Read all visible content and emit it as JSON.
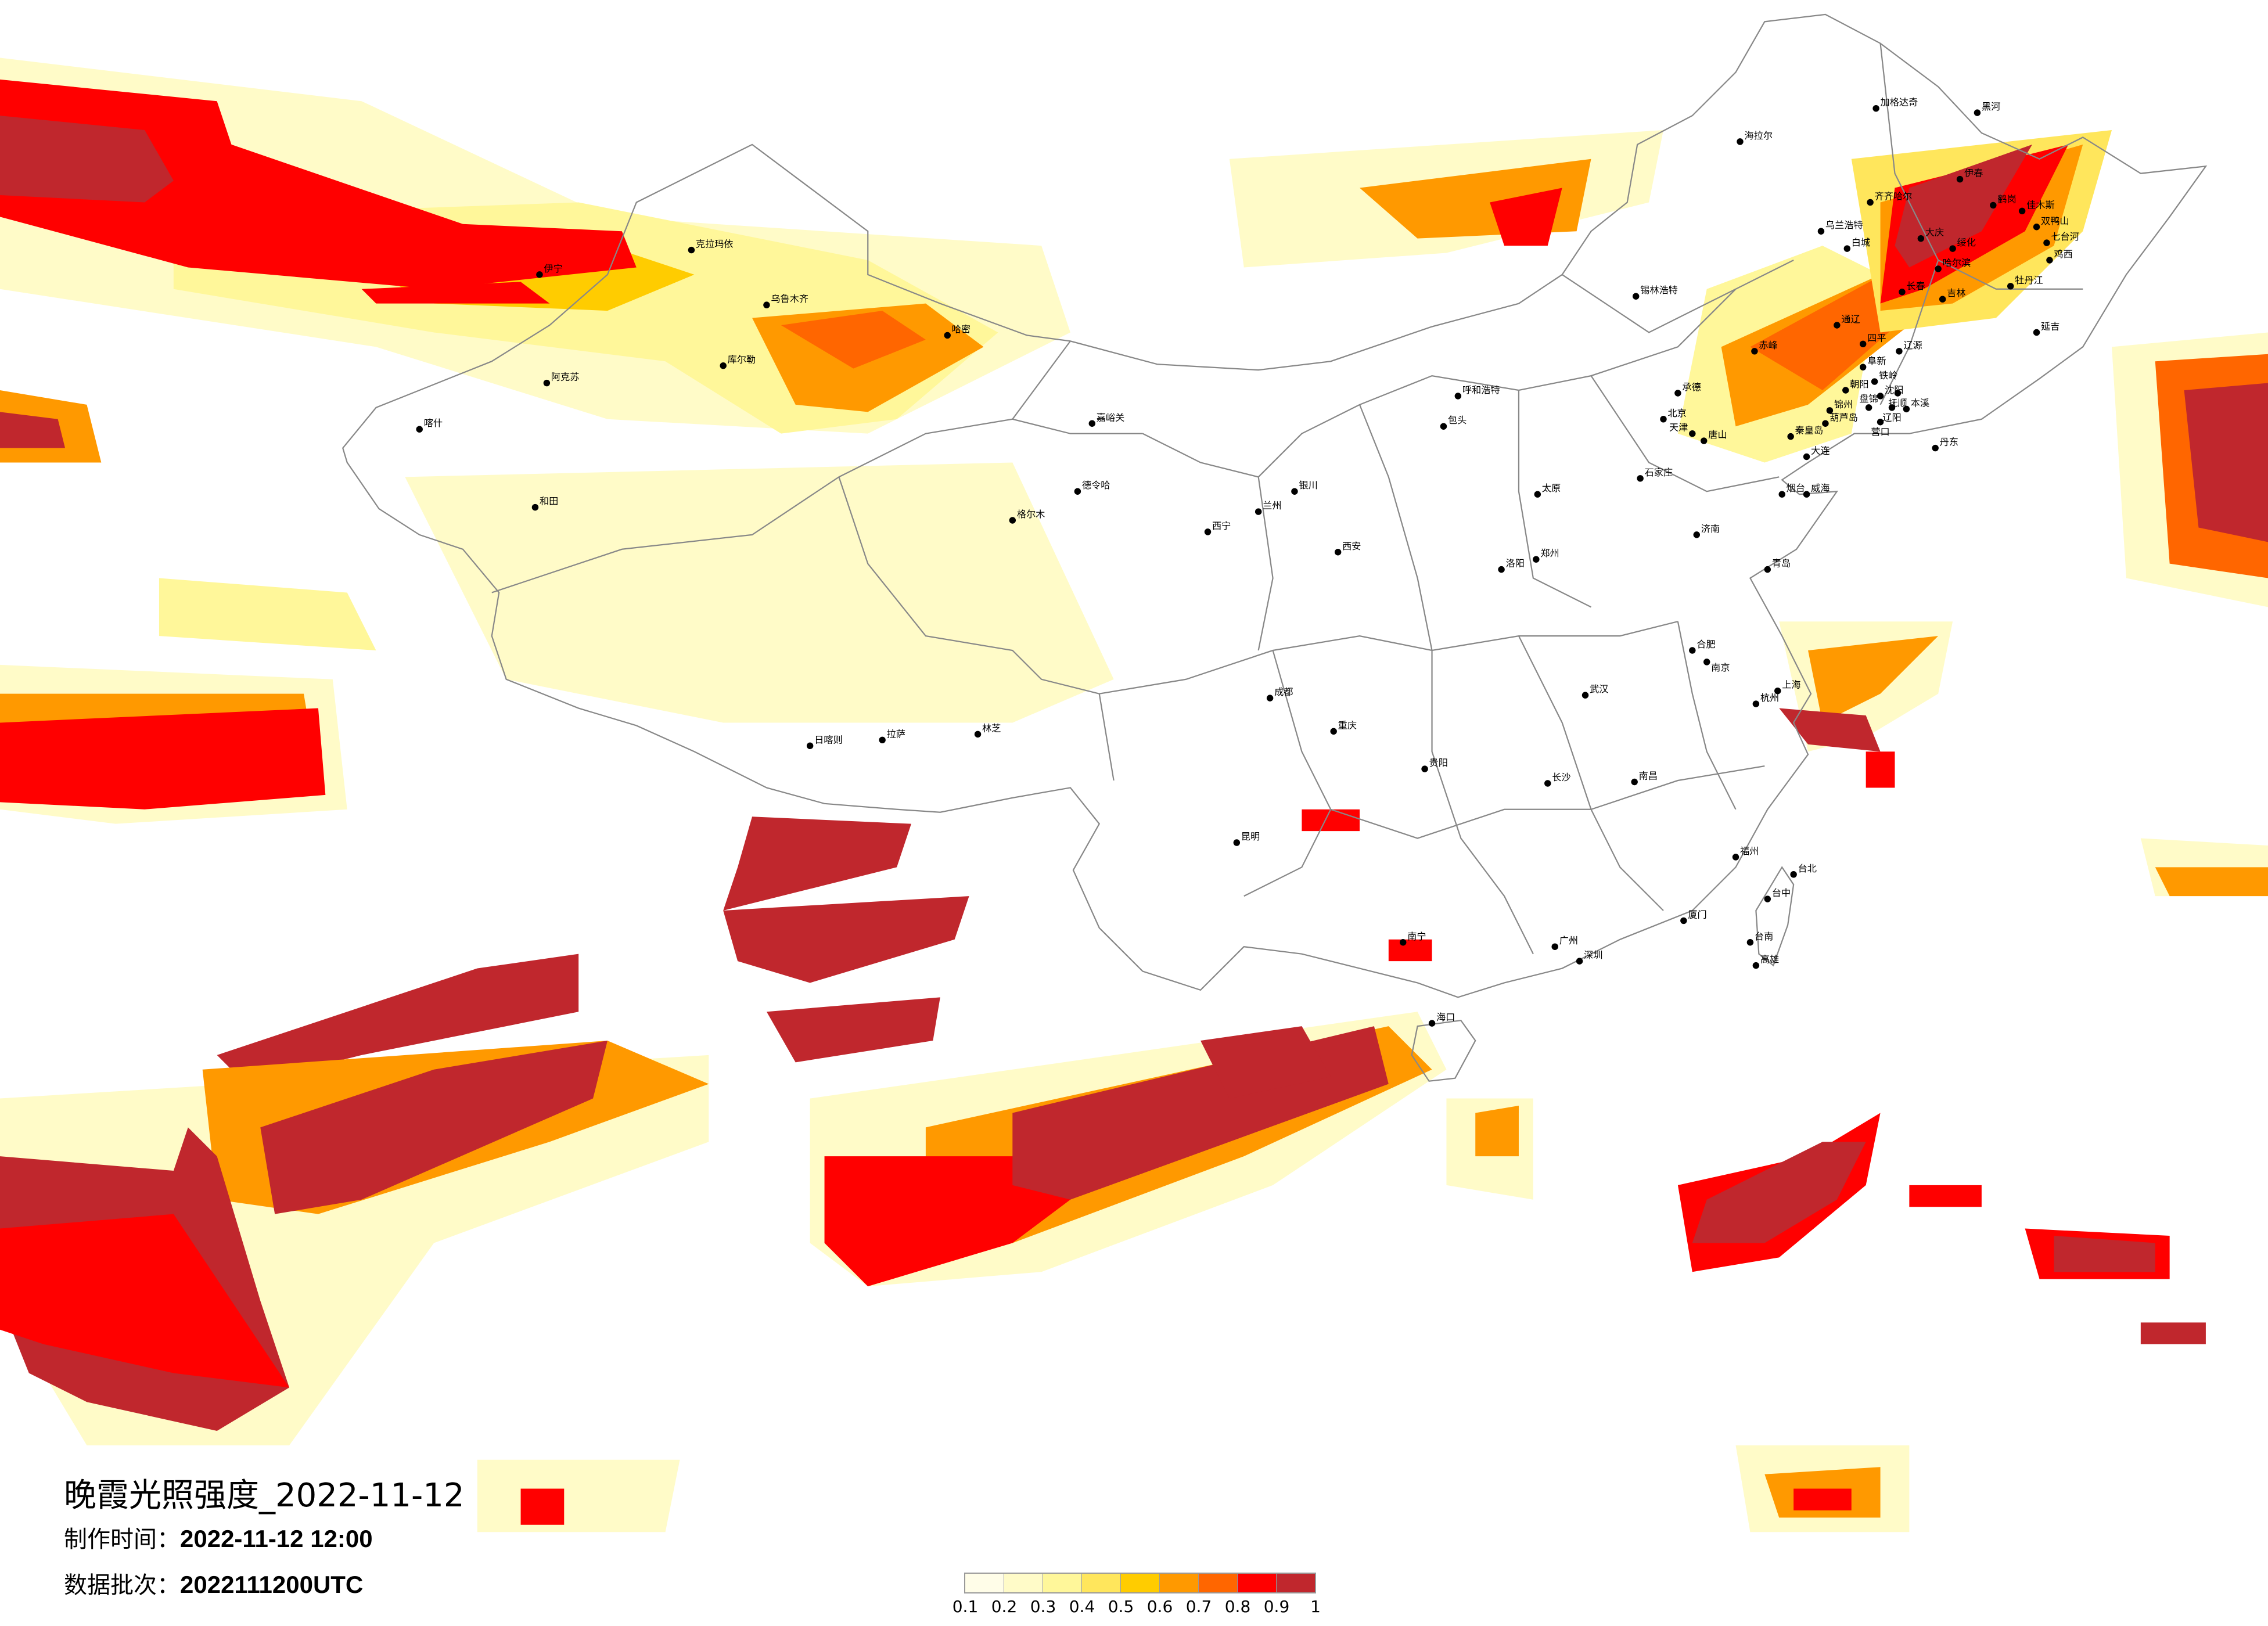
{
  "title": "晚霞光照强度_2022-11-12",
  "production_time": {
    "label": "制作时间：",
    "value": "2022-11-12 12:00"
  },
  "data_batch": {
    "label": "数据批次：",
    "value": "2022111200UTC"
  },
  "legend": {
    "colors": [
      "#FFFDE8",
      "#FFFBC8",
      "#FFF79A",
      "#FFE65C",
      "#FFCC00",
      "#FF9900",
      "#FF6600",
      "#FF0000",
      "#C0272D"
    ],
    "ticks": [
      "0.1",
      "0.2",
      "0.3",
      "0.4",
      "0.5",
      "0.6",
      "0.7",
      "0.8",
      "0.9",
      "1"
    ]
  },
  "cities": [
    "加格达奇",
    "黑河",
    "海拉尔",
    "齐齐哈尔",
    "伊春",
    "鹤岗",
    "佳木斯",
    "双鸭山",
    "大庆",
    "绥化",
    "哈尔滨",
    "七台河",
    "鸡西",
    "牡丹江",
    "乌兰浩特",
    "白城",
    "长春",
    "吉林",
    "通辽",
    "四平",
    "辽源",
    "延吉",
    "赤峰",
    "阜新",
    "铁岭",
    "沈阳",
    "抚顺",
    "朝阳",
    "锦州",
    "盘锦",
    "辽阳",
    "本溪",
    "承德",
    "葫芦岛",
    "营口",
    "秦皇岛",
    "唐山",
    "丹东",
    "大连",
    "锡林浩特",
    "北京",
    "天津",
    "石家庄",
    "太原",
    "济南",
    "青岛",
    "烟台",
    "威海",
    "郑州",
    "洛阳",
    "合肥",
    "南京",
    "上海",
    "杭州",
    "武汉",
    "长沙",
    "南昌",
    "福州",
    "厦门",
    "广州",
    "深圳",
    "南宁",
    "海口",
    "贵阳",
    "昆明",
    "成都",
    "重庆",
    "西安",
    "兰州",
    "西宁",
    "银川",
    "呼和浩特",
    "包头",
    "乌鲁木齐",
    "克拉玛依",
    "伊宁",
    "库尔勒",
    "哈密",
    "阿克苏",
    "喀什",
    "和田",
    "拉萨",
    "日喀则",
    "林芝",
    "格尔木",
    "德令哈",
    "嘉峪关",
    "台北",
    "台中",
    "高雄",
    "台南"
  ]
}
